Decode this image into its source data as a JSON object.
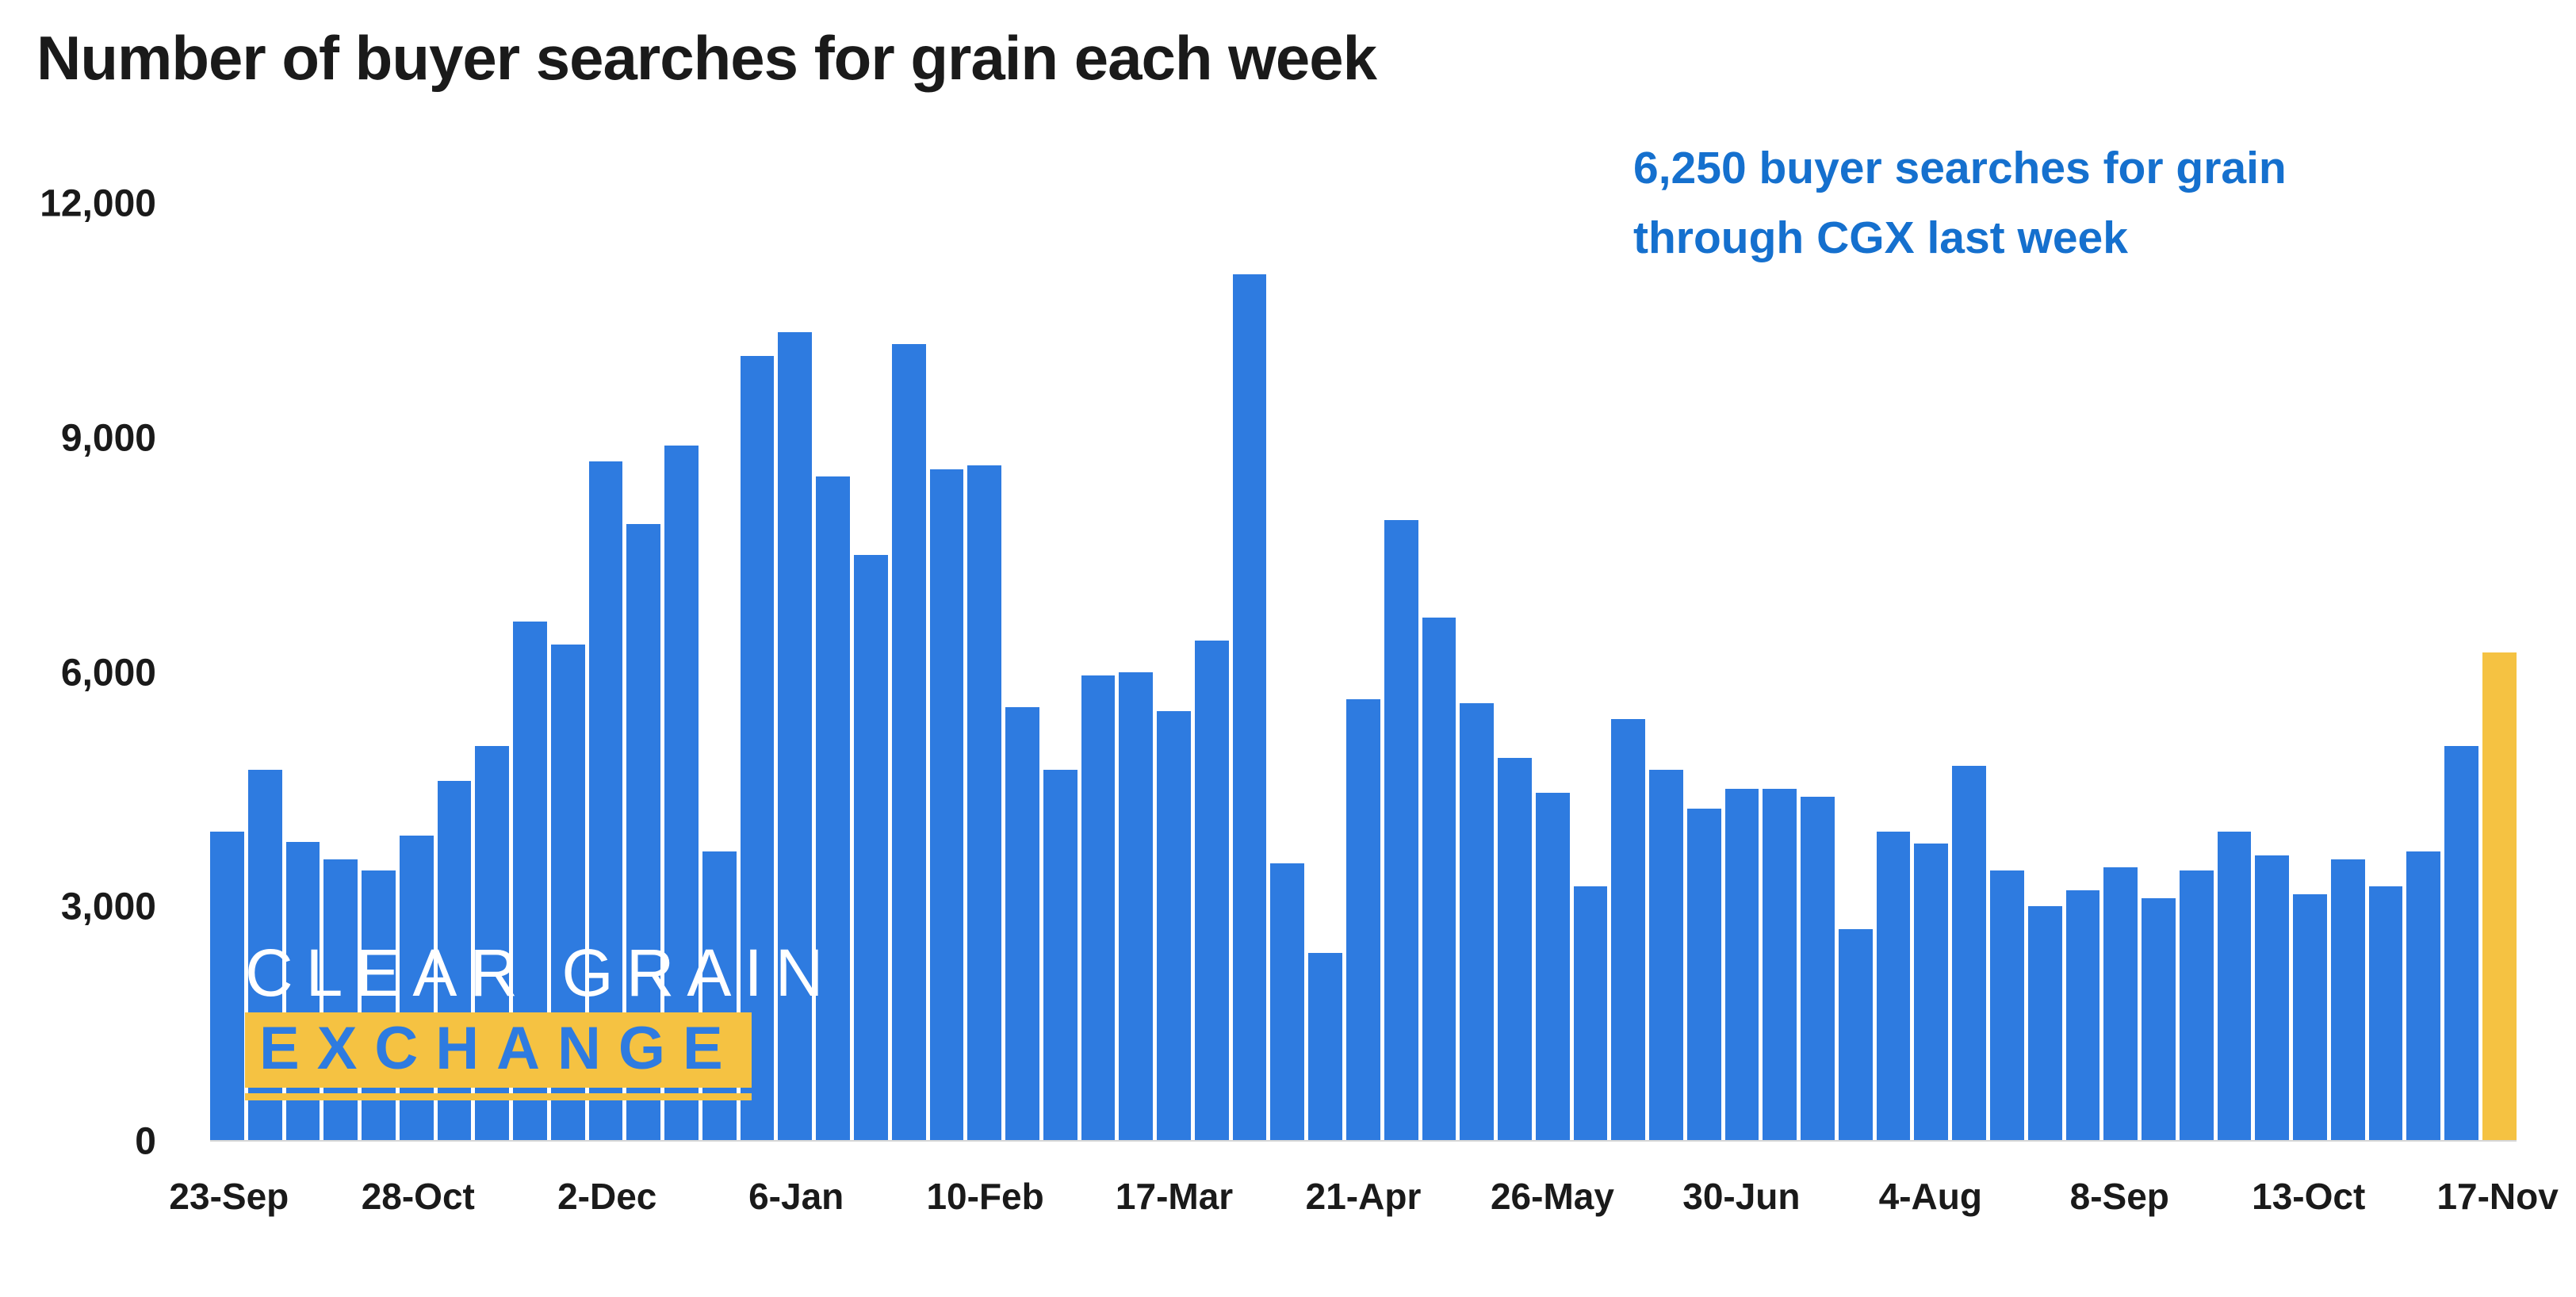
{
  "title": "Number of buyer searches for grain each week",
  "annotation": {
    "line1": "6,250 buyer searches for grain",
    "line2": "through CGX last week"
  },
  "logo": {
    "line1": "CLEAR GRAIN",
    "line2": "EXCHANGE"
  },
  "colors": {
    "bar": "#2E7BE0",
    "highlight": "#F5C242",
    "annotation": "#1570CE",
    "title": "#1A1A1A",
    "axis_labels": "#1A1A1A",
    "logo_white": "#FFFFFF"
  },
  "chart_data": {
    "type": "bar",
    "title": "Number of buyer searches for grain each week",
    "xlabel": "",
    "ylabel": "",
    "ylim": [
      0,
      12000
    ],
    "grid": false,
    "legend": false,
    "highlight_index": 60,
    "highlight_value": 6250,
    "y_ticks": [
      {
        "label": "0",
        "value": 0
      },
      {
        "label": "3,000",
        "value": 3000
      },
      {
        "label": "6,000",
        "value": 6000
      },
      {
        "label": "9,000",
        "value": 9000
      },
      {
        "label": "12,000",
        "value": 12000
      }
    ],
    "x_ticks": [
      {
        "label": "23-Sep",
        "index": 0
      },
      {
        "label": "28-Oct",
        "index": 5
      },
      {
        "label": "2-Dec",
        "index": 10
      },
      {
        "label": "6-Jan",
        "index": 15
      },
      {
        "label": "10-Feb",
        "index": 20
      },
      {
        "label": "17-Mar",
        "index": 25
      },
      {
        "label": "21-Apr",
        "index": 30
      },
      {
        "label": "26-May",
        "index": 35
      },
      {
        "label": "30-Jun",
        "index": 40
      },
      {
        "label": "4-Aug",
        "index": 45
      },
      {
        "label": "8-Sep",
        "index": 50
      },
      {
        "label": "13-Oct",
        "index": 55
      },
      {
        "label": "17-Nov",
        "index": 60
      }
    ],
    "values": [
      3950,
      4750,
      3820,
      3600,
      3450,
      3900,
      4600,
      5050,
      6650,
      6350,
      8700,
      7900,
      8900,
      3700,
      10050,
      10350,
      8500,
      7500,
      10200,
      8600,
      8650,
      5550,
      4750,
      5950,
      6000,
      5500,
      6400,
      11100,
      3550,
      2400,
      5650,
      7950,
      6700,
      5600,
      4900,
      4450,
      3250,
      5400,
      4750,
      4250,
      4500,
      4500,
      4400,
      2700,
      3950,
      3800,
      4800,
      3450,
      3000,
      3200,
      3500,
      3100,
      3450,
      3950,
      3650,
      3150,
      3600,
      3250,
      3700,
      5050,
      6250
    ]
  }
}
